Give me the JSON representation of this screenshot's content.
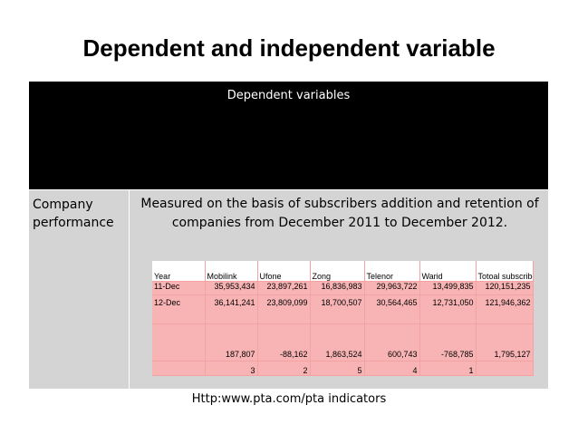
{
  "title": "Dependent and independent variable",
  "header": {
    "label": "Dependent variables"
  },
  "row": {
    "label_line1": "Company",
    "label_line2": "performance",
    "measure_line1": "Measured on the basis of subscribers addition and retention of",
    "measure_line2": "companies from December 2011 to December 2012."
  },
  "table": {
    "columns": [
      "Year",
      "Mobilink",
      "Ufone",
      "Zong",
      "Telenor",
      "Warid",
      "Totoal subscribers"
    ],
    "rows": [
      [
        "11-Dec",
        "35,953,434",
        "23,897,261",
        "16,836,983",
        "29,963,722",
        "13,499,835",
        "120,151,235"
      ],
      [
        "12-Dec",
        "36,141,241",
        "23,809,099",
        "18,700,507",
        "30,564,465",
        "12,731,050",
        "121,946,362"
      ],
      [
        "",
        "187,807",
        "-88,162",
        "1,863,524",
        "600,743",
        "-768,785",
        "1,795,127"
      ],
      [
        "",
        "3",
        "2",
        "5",
        "4",
        "1",
        ""
      ]
    ]
  },
  "source": "Http:www.pta.com/pta indicators",
  "colors": {
    "header_bg": "#000000",
    "body_bg": "#d4d4d4",
    "table_pink": "#f8b4b4"
  }
}
